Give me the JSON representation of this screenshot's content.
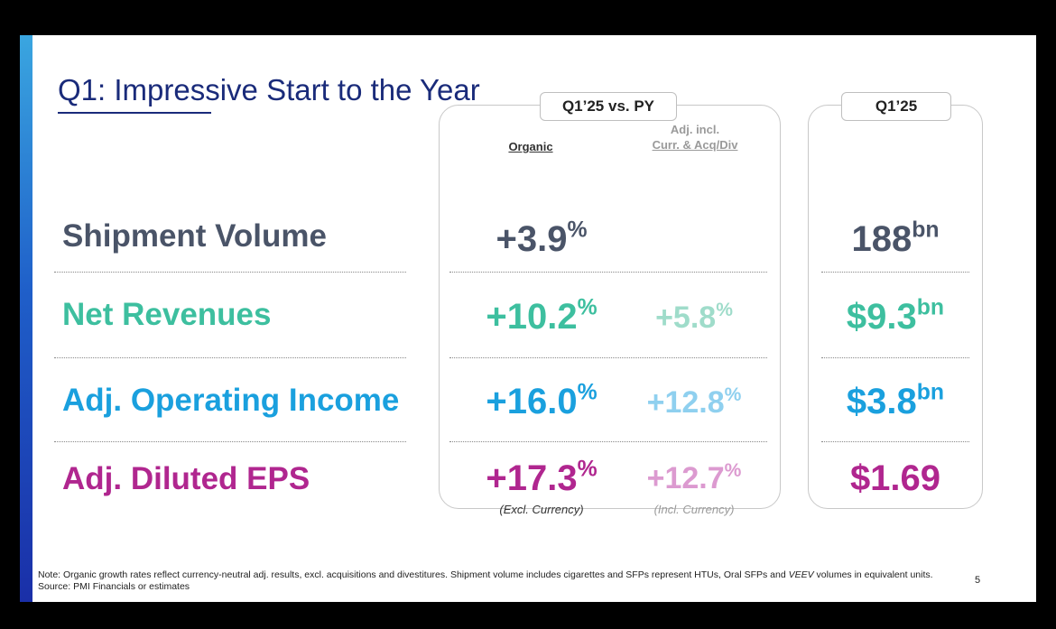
{
  "title": "Q1: Impressive Start to the Year",
  "panels": {
    "comparison_tag": "Q1’25 vs. PY",
    "period_tag": "Q1’25"
  },
  "columns": {
    "organic": "Organic",
    "adjusted_line1": "Adj. incl.",
    "adjusted_line2": "Curr. & Acq/Div"
  },
  "rows": [
    {
      "label": "Shipment Volume",
      "organic": "+3.9",
      "organic_unit": "%",
      "adjusted": "",
      "adjusted_unit": "",
      "q1": "188",
      "q1_unit": "bn",
      "color": "#4a5468"
    },
    {
      "label": "Net Revenues",
      "organic": "+10.2",
      "organic_unit": "%",
      "adjusted": "+5.8",
      "adjusted_unit": "%",
      "q1": "$9.3",
      "q1_unit": "bn",
      "color": "#3dbf9f"
    },
    {
      "label": "Adj. Operating Income",
      "organic": "+16.0",
      "organic_unit": "%",
      "adjusted": "+12.8",
      "adjusted_unit": "%",
      "q1": "$3.8",
      "q1_unit": "bn",
      "color": "#1aa0de"
    },
    {
      "label": "Adj. Diluted EPS",
      "organic": "+17.3",
      "organic_unit": "%",
      "adjusted": "+12.7",
      "adjusted_unit": "%",
      "q1": "$1.69",
      "q1_unit": "",
      "color": "#b0268f"
    }
  ],
  "subnotes": {
    "organic": "(Excl. Currency)",
    "adjusted": "(Incl. Currency)"
  },
  "footnote": {
    "text_before_italic": "Note: Organic growth rates reflect currency-neutral adj. results, excl. acquisitions and divestitures. Shipment volume includes cigarettes and SFPs represent HTUs, Oral SFPs and ",
    "italic": "VEEV",
    "text_after_italic": " volumes in equivalent units. Source: PMI Financials or estimates"
  },
  "page_number": "5"
}
